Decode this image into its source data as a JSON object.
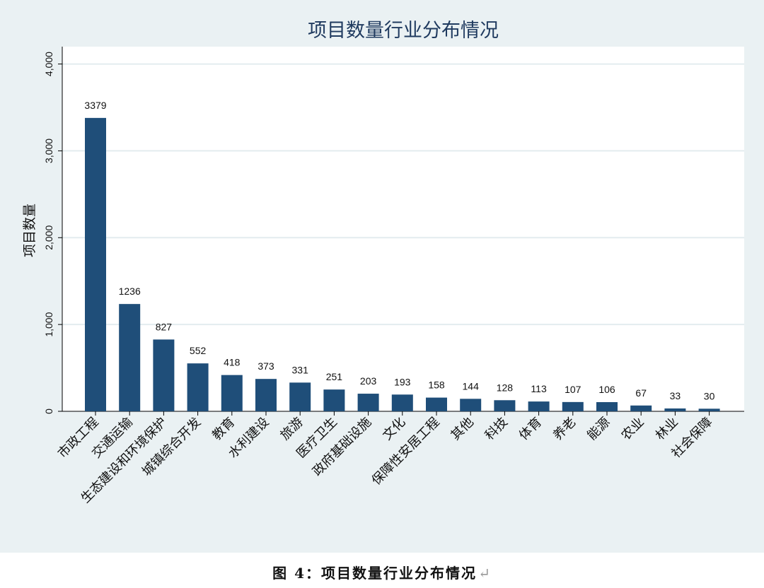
{
  "caption": {
    "text": "图 4：项目数量行业分布情况",
    "return_mark": "↵"
  },
  "colors": {
    "bar": "#1f4e79",
    "plot_background": "#ffffff",
    "figure_background": "#eaf1f3",
    "grid": "#e3ecef",
    "title": "#1f3a5f"
  },
  "chart_data": {
    "type": "bar",
    "title": "项目数量行业分布情况",
    "ylabel": "项目数量",
    "xlabel": "",
    "ylim": [
      0,
      4200
    ],
    "yticks": [
      0,
      1000,
      2000,
      3000,
      4000
    ],
    "ytick_labels": [
      "0",
      "1,000",
      "2,000",
      "3,000",
      "4,000"
    ],
    "grid": true,
    "categories": [
      "市政工程",
      "交通运输",
      "生态建设和环境保护",
      "城镇综合开发",
      "教育",
      "水利建设",
      "旅游",
      "医疗卫生",
      "政府基础设施",
      "文化",
      "保障性安居工程",
      "其他",
      "科技",
      "体育",
      "养老",
      "能源",
      "农业",
      "林业",
      "社会保障"
    ],
    "values": [
      3379,
      1236,
      827,
      552,
      418,
      373,
      331,
      251,
      203,
      193,
      158,
      144,
      128,
      113,
      107,
      106,
      67,
      33,
      30
    ],
    "data_labels": [
      "3379",
      "1236",
      "827",
      "552",
      "418",
      "373",
      "331",
      "251",
      "203",
      "193",
      "158",
      "144",
      "128",
      "113",
      "107",
      "106",
      "67",
      "33",
      "30"
    ]
  }
}
